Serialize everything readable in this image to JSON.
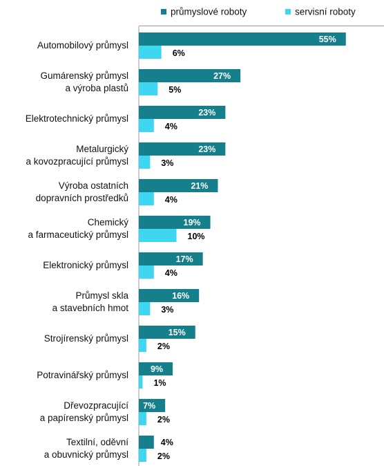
{
  "chart_data": {
    "type": "bar",
    "orientation": "horizontal",
    "categories": [
      [
        "Automobilový průmysl"
      ],
      [
        "Gumárenský průmysl",
        "a výroba plastů"
      ],
      [
        "Elektrotechnický průmysl"
      ],
      [
        "Metalurgický",
        "a kovozpracující průmysl"
      ],
      [
        "Výroba ostatních",
        "dopravních prostředků"
      ],
      [
        "Chemický",
        "a farmaceutický průmysl"
      ],
      [
        "Elektronický průmysl"
      ],
      [
        "Průmysl skla",
        "a stavebních hmot"
      ],
      [
        "Strojírenský průmysl"
      ],
      [
        "Potravinářský průmysl"
      ],
      [
        "Dřevozpracující",
        "a papírenský průmysl"
      ],
      [
        "Textilní, oděvní",
        "a obuvnický průmysl"
      ]
    ],
    "series": [
      {
        "name": "průmyslové roboty",
        "color": "#167F8C",
        "values": [
          55,
          27,
          23,
          23,
          21,
          19,
          17,
          16,
          15,
          9,
          7,
          4
        ],
        "labels": [
          "55%",
          "27%",
          "23%",
          "23%",
          "21%",
          "19%",
          "17%",
          "16%",
          "15%",
          "9%",
          "7%",
          "4%"
        ]
      },
      {
        "name": "servisní roboty",
        "color": "#3FD6F2",
        "values": [
          6,
          5,
          4,
          3,
          4,
          10,
          4,
          3,
          2,
          1,
          2,
          2
        ],
        "labels": [
          "6%",
          "5%",
          "4%",
          "3%",
          "4%",
          "10%",
          "4%",
          "3%",
          "2%",
          "1%",
          "2%",
          "2%"
        ]
      }
    ],
    "xlim": [
      0,
      65
    ],
    "grid": false,
    "legend_position": "top"
  }
}
